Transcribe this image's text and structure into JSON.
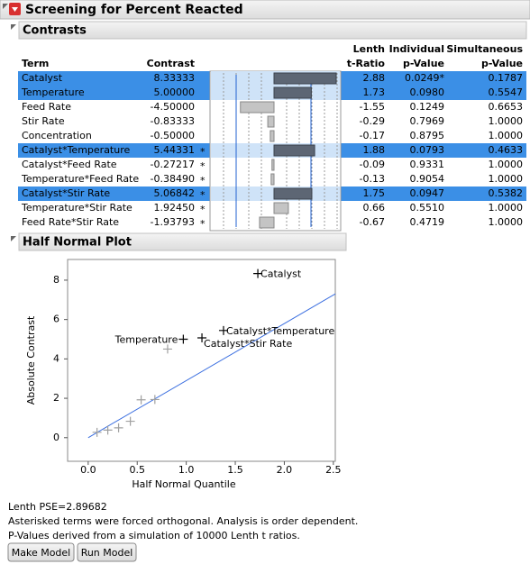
{
  "header": {
    "title": "Screening for Percent Reacted"
  },
  "contrasts": {
    "title": "Contrasts",
    "columns": [
      [
        "Term"
      ],
      [
        "Contrast"
      ],
      [
        "Lenth",
        "t-Ratio"
      ],
      [
        "Individual",
        "p-Value"
      ],
      [
        "Simultaneous",
        "p-Value"
      ]
    ],
    "rows": [
      {
        "term": "Catalyst",
        "contrast": "8.33333",
        "t_ratio": "2.88",
        "individual_p": "0.0249*",
        "individual_p_color": "#e8459a",
        "simultaneous_p": "0.1787",
        "selected": true
      },
      {
        "term": "Temperature",
        "contrast": "5.00000",
        "t_ratio": "1.73",
        "individual_p": "0.0980",
        "simultaneous_p": "0.5547",
        "selected": true
      },
      {
        "term": "Feed Rate",
        "contrast": "-4.50000",
        "t_ratio": "-1.55",
        "individual_p": "0.1249",
        "simultaneous_p": "0.6653",
        "selected": false
      },
      {
        "term": "Stir Rate",
        "contrast": "-0.83333",
        "t_ratio": "-0.29",
        "individual_p": "0.7969",
        "simultaneous_p": "1.0000",
        "selected": false
      },
      {
        "term": "Concentration",
        "contrast": "-0.50000",
        "t_ratio": "-0.17",
        "individual_p": "0.8795",
        "simultaneous_p": "1.0000",
        "selected": false
      },
      {
        "term": "Catalyst*Temperature",
        "contrast": "5.44331",
        "flag": "*",
        "t_ratio": "1.88",
        "individual_p": "0.0793",
        "simultaneous_p": "0.4633",
        "selected": true
      },
      {
        "term": "Catalyst*Feed Rate",
        "contrast": "-0.27217",
        "flag": "*",
        "t_ratio": "-0.09",
        "individual_p": "0.9331",
        "simultaneous_p": "1.0000",
        "selected": false
      },
      {
        "term": "Temperature*Feed Rate",
        "contrast": "-0.38490",
        "flag": "*",
        "t_ratio": "-0.13",
        "individual_p": "0.9054",
        "simultaneous_p": "1.0000",
        "selected": false
      },
      {
        "term": "Catalyst*Stir Rate",
        "contrast": "5.06842",
        "flag": "*",
        "t_ratio": "1.75",
        "individual_p": "0.0947",
        "simultaneous_p": "0.5382",
        "selected": true
      },
      {
        "term": "Temperature*Stir Rate",
        "contrast": "1.92450",
        "flag": "*",
        "t_ratio": "0.66",
        "individual_p": "0.5510",
        "simultaneous_p": "1.0000",
        "selected": false
      },
      {
        "term": "Feed Rate*Stir Rate",
        "contrast": "-1.93793",
        "flag": "*",
        "t_ratio": "-0.67",
        "individual_p": "0.4719",
        "simultaneous_p": "1.0000",
        "selected": false
      }
    ]
  },
  "chart_data": {
    "type": "scatter",
    "title": "Half Normal Plot",
    "x_label": "Half Normal Quantile",
    "y_label": "Absolute Contrast",
    "x": [
      0.09,
      0.2,
      0.31,
      0.43,
      0.54,
      0.68,
      0.81,
      0.97,
      1.16,
      1.38,
      1.73
    ],
    "values": [
      0.27217,
      0.3849,
      0.5,
      0.83333,
      1.9245,
      1.93793,
      4.5,
      5.0,
      5.06842,
      5.44331,
      8.33333
    ],
    "point_labels": [
      null,
      null,
      null,
      null,
      null,
      null,
      null,
      "Temperature",
      "Catalyst*Stir Rate",
      "Catalyst*Temperature",
      "Catalyst"
    ],
    "labeled_color": "#000000",
    "unlabeled_color": "#a0a0a0",
    "line_color": "#3a6ee0",
    "xlim": [
      -0.21,
      2.52
    ],
    "ylim": [
      -1.2,
      9.05
    ],
    "xticks": [
      {
        "value": 0,
        "label": "0.0"
      },
      {
        "value": 0.5,
        "label": "0.5"
      },
      {
        "value": 1,
        "label": "1.0"
      },
      {
        "value": 1.5,
        "label": "1.5"
      },
      {
        "value": 2,
        "label": "2.0"
      },
      {
        "value": 2.5,
        "label": "2.5"
      }
    ],
    "yticks": [
      0,
      2,
      4,
      6,
      8
    ]
  },
  "footer": {
    "lenth_pse": {
      "label": "Lenth PSE=",
      "value": 2.89682
    },
    "notes": [
      "Asterisked terms were forced orthogonal. Analysis is order dependent.",
      "P-Values derived from a simulation of 10000 Lenth t ratios."
    ]
  },
  "buttons": [
    "Make Model",
    "Run Model"
  ]
}
